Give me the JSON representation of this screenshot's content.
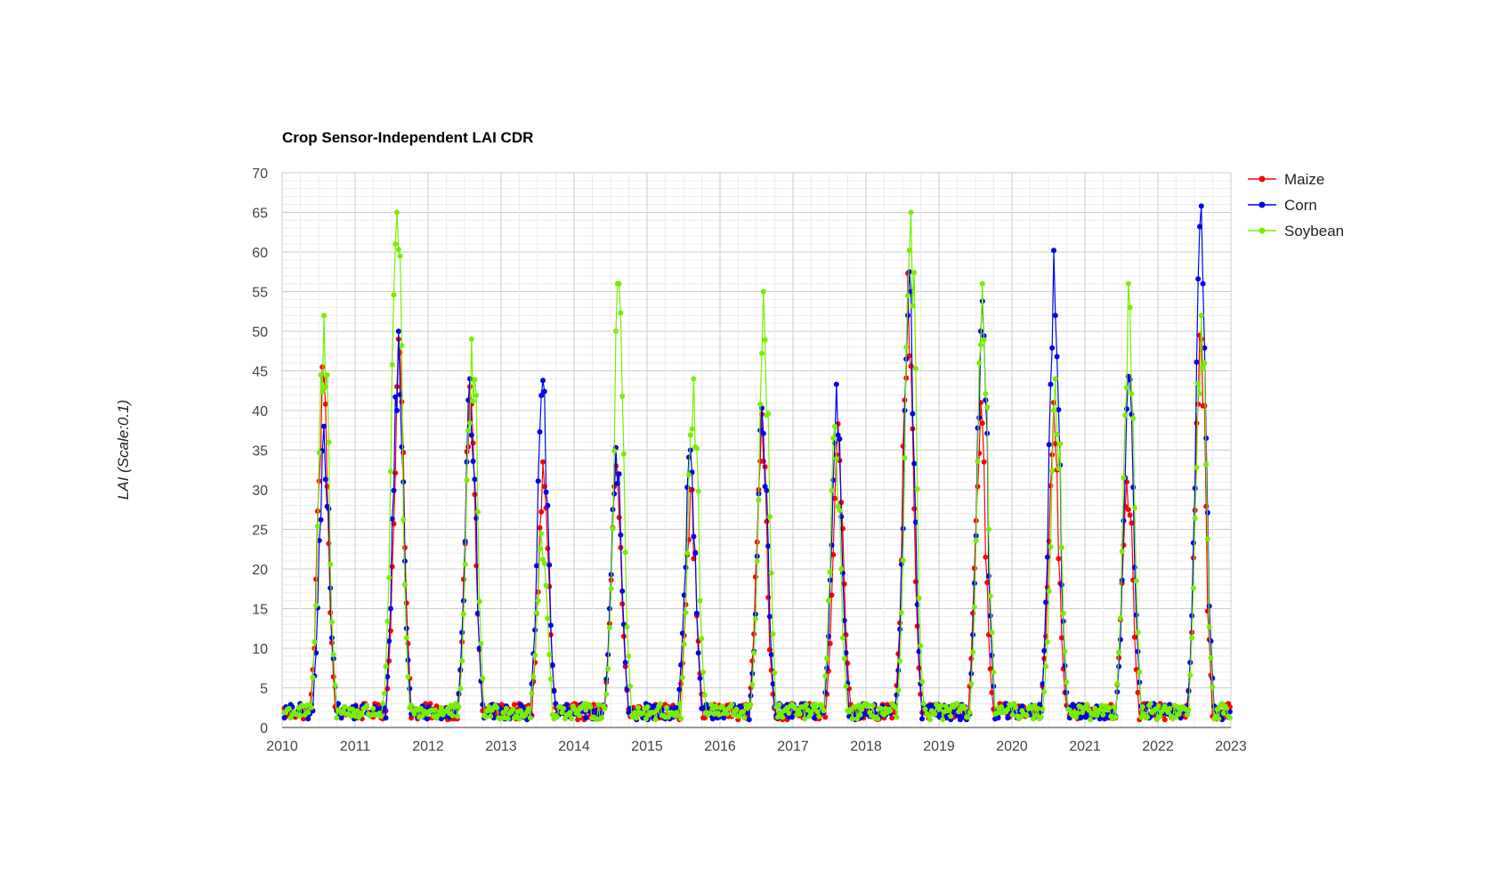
{
  "chart_data": {
    "type": "line",
    "title": "Crop Sensor-Independent LAI CDR",
    "xlabel": "",
    "ylabel": "LAI (Scale:0.1)",
    "xlim": [
      2010,
      2023
    ],
    "ylim": [
      0,
      70
    ],
    "x_ticks": [
      "2010",
      "2011",
      "2012",
      "2013",
      "2014",
      "2015",
      "2016",
      "2017",
      "2018",
      "2019",
      "2020",
      "2021",
      "2022",
      "2023"
    ],
    "y_ticks": [
      "0",
      "5",
      "10",
      "15",
      "20",
      "25",
      "30",
      "35",
      "40",
      "45",
      "50",
      "55",
      "60",
      "65",
      "70"
    ],
    "grid": true,
    "legend_position": "right",
    "series": [
      {
        "name": "Maize",
        "color": "#ff0000",
        "peaks": [
          {
            "year": 2010,
            "t": 0.56,
            "peak": 45.5,
            "secondary": 36
          },
          {
            "year": 2011,
            "t": 0.6,
            "peak": 49,
            "secondary": 35
          },
          {
            "year": 2012,
            "t": 0.58,
            "peak": 43,
            "secondary": 36
          },
          {
            "year": 2013,
            "t": 0.58,
            "peak": 33.5,
            "secondary": 28.5
          },
          {
            "year": 2014,
            "t": 0.58,
            "peak": 33,
            "secondary": 24
          },
          {
            "year": 2015,
            "t": 0.6,
            "peak": 30,
            "secondary": 25
          },
          {
            "year": 2016,
            "t": 0.57,
            "peak": 39.5,
            "secondary": 32
          },
          {
            "year": 2017,
            "t": 0.62,
            "peak": 38.3,
            "secondary": 36
          },
          {
            "year": 2018,
            "t": 0.58,
            "peak": 57.3,
            "secondary": 44
          },
          {
            "year": 2019,
            "t": 0.57,
            "peak": 41,
            "secondary": 32.5
          },
          {
            "year": 2020,
            "t": 0.57,
            "peak": 41,
            "secondary": 28.5
          },
          {
            "year": 2021,
            "t": 0.58,
            "peak": 31,
            "secondary": 29
          },
          {
            "year": 2022,
            "t": 0.58,
            "peak": 49.5,
            "secondary": 45.5
          }
        ]
      },
      {
        "name": "Corn",
        "color": "#0000ee",
        "peaks": [
          {
            "year": 2010,
            "t": 0.58,
            "peak": 38,
            "secondary": 33
          },
          {
            "year": 2011,
            "t": 0.59,
            "peak": 50,
            "secondary": 43
          },
          {
            "year": 2012,
            "t": 0.58,
            "peak": 44,
            "secondary": 39.5
          },
          {
            "year": 2013,
            "t": 0.57,
            "peak": 43.8,
            "secondary": 38
          },
          {
            "year": 2014,
            "t": 0.58,
            "peak": 35.3,
            "secondary": 26
          },
          {
            "year": 2015,
            "t": 0.59,
            "peak": 35,
            "secondary": 28
          },
          {
            "year": 2016,
            "t": 0.58,
            "peak": 40.3,
            "secondary": 37
          },
          {
            "year": 2017,
            "t": 0.6,
            "peak": 43.3,
            "secondary": 30
          },
          {
            "year": 2018,
            "t": 0.59,
            "peak": 57.5,
            "secondary": 50.5
          },
          {
            "year": 2019,
            "t": 0.59,
            "peak": 53.8,
            "secondary": 47
          },
          {
            "year": 2020,
            "t": 0.58,
            "peak": 60.2,
            "secondary": 53.5
          },
          {
            "year": 2021,
            "t": 0.6,
            "peak": 44.3,
            "secondary": 37
          },
          {
            "year": 2022,
            "t": 0.59,
            "peak": 65.8,
            "secondary": 57
          }
        ]
      },
      {
        "name": "Soybean",
        "color": "#77ee00",
        "peaks": [
          {
            "year": 2010,
            "t": 0.57,
            "peak": 52,
            "secondary": 48
          },
          {
            "year": 2011,
            "t": 0.57,
            "peak": 65,
            "secondary": 61
          },
          {
            "year": 2012,
            "t": 0.6,
            "peak": 49,
            "secondary": 47
          },
          {
            "year": 2013,
            "t": 0.56,
            "peak": 24.5,
            "secondary": 22
          },
          {
            "year": 2014,
            "t": 0.61,
            "peak": 56,
            "secondary": 48
          },
          {
            "year": 2015,
            "t": 0.63,
            "peak": 44,
            "secondary": 41
          },
          {
            "year": 2016,
            "t": 0.6,
            "peak": 55,
            "secondary": 47
          },
          {
            "year": 2017,
            "t": 0.58,
            "peak": 38,
            "secondary": 29
          },
          {
            "year": 2018,
            "t": 0.61,
            "peak": 65,
            "secondary": 62
          },
          {
            "year": 2019,
            "t": 0.6,
            "peak": 56,
            "secondary": 49
          },
          {
            "year": 2020,
            "t": 0.6,
            "peak": 44,
            "secondary": 41
          },
          {
            "year": 2021,
            "t": 0.6,
            "peak": 56,
            "secondary": 48
          },
          {
            "year": 2022,
            "t": 0.59,
            "peak": 52,
            "secondary": 49
          }
        ]
      }
    ],
    "baseline_min": 1,
    "baseline_max": 3
  }
}
